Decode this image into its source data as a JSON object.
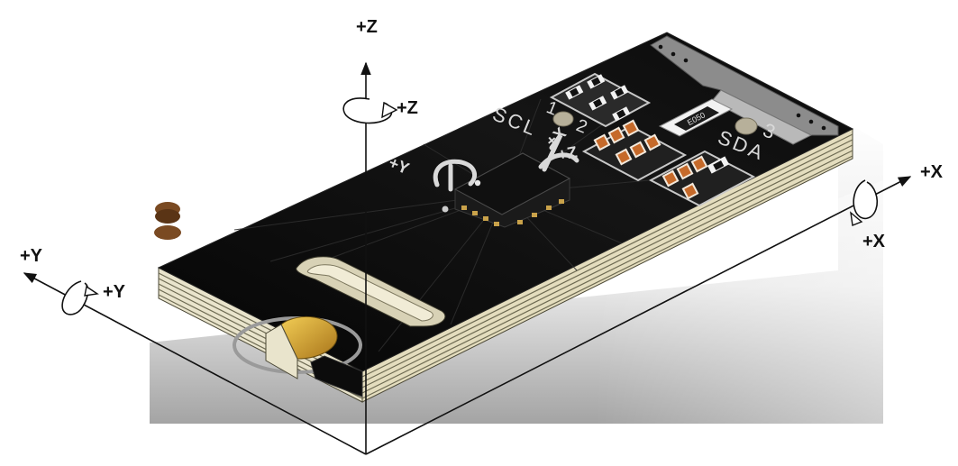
{
  "axes": {
    "z": {
      "axis_label": "+Z",
      "rotation_label": "+Z"
    },
    "x": {
      "axis_label": "+X",
      "rotation_label": "+X"
    },
    "y": {
      "axis_label": "+Y",
      "rotation_label": "+Y"
    }
  },
  "board": {
    "silkscreen": {
      "scl": "SCL",
      "sda": "SDA",
      "pin_one": "1",
      "pin_two": "2",
      "pin_three": "3",
      "y_dir": "+Y",
      "x_dir": "+X",
      "z_dir": "+Z",
      "resistor_code": "E050"
    }
  },
  "colors": {
    "board_top": "#0c0c0c",
    "board_edge_layers": "#e9e4cc",
    "copper": "#d9a531",
    "pad_brown": "#6b3d1c",
    "axis_stroke": "#111111",
    "backdrop_dark": "#9a9a9a"
  }
}
